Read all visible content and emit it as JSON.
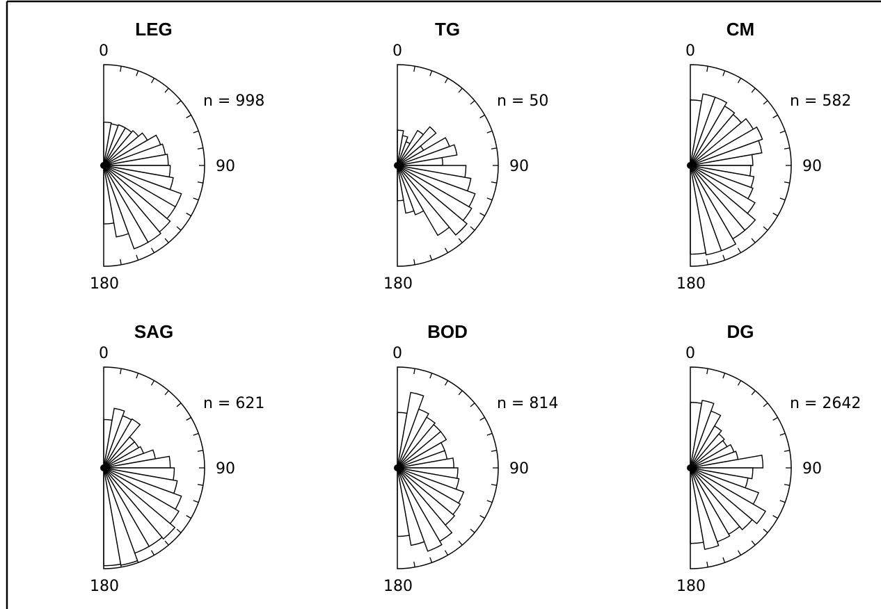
{
  "chart_data": [
    {
      "type": "rose",
      "title": "LEG",
      "count_label": "n = 998",
      "angle_labels": [
        "0",
        "90",
        "180"
      ],
      "angle_range": [
        0,
        180
      ],
      "bin_width_deg": 10,
      "radius_max": 1.0,
      "values": [
        0.43,
        0.42,
        0.43,
        0.43,
        0.45,
        0.5,
        0.6,
        0.62,
        0.64,
        0.66,
        0.7,
        0.82,
        0.82,
        0.86,
        0.88,
        0.88,
        0.72,
        0.58
      ]
    },
    {
      "type": "rose",
      "title": "TG",
      "count_label": "n = 50",
      "angle_labels": [
        "0",
        "90",
        "180"
      ],
      "angle_range": [
        0,
        180
      ],
      "bin_width_deg": 10,
      "radius_max": 1.0,
      "values": [
        0.35,
        0.3,
        0.25,
        0.4,
        0.5,
        0.3,
        0.55,
        0.6,
        0.45,
        0.68,
        0.74,
        0.82,
        0.85,
        0.9,
        0.8,
        0.52,
        0.48,
        0.35
      ]
    },
    {
      "type": "rose",
      "title": "CM",
      "count_label": "n = 582",
      "angle_labels": [
        "0",
        "90",
        "180"
      ],
      "angle_range": [
        0,
        180
      ],
      "bin_width_deg": 10,
      "radius_max": 1.0,
      "values": [
        0.65,
        0.72,
        0.72,
        0.68,
        0.66,
        0.72,
        0.76,
        0.72,
        0.62,
        0.6,
        0.64,
        0.66,
        0.74,
        0.84,
        0.84,
        0.9,
        0.9,
        0.88
      ]
    },
    {
      "type": "rose",
      "title": "SAG",
      "count_label": "n = 621",
      "angle_labels": [
        "0",
        "90",
        "180"
      ],
      "angle_range": [
        0,
        180
      ],
      "bin_width_deg": 10,
      "radius_max": 1.0,
      "values": [
        0.48,
        0.6,
        0.55,
        0.56,
        0.4,
        0.4,
        0.42,
        0.52,
        0.66,
        0.7,
        0.74,
        0.82,
        0.86,
        0.92,
        0.9,
        0.9,
        0.98,
        0.97
      ]
    },
    {
      "type": "rose",
      "title": "BOD",
      "count_label": "n = 814",
      "angle_labels": [
        "0",
        "90",
        "180"
      ],
      "angle_range": [
        0,
        180
      ],
      "bin_width_deg": 10,
      "radius_max": 1.0,
      "values": [
        0.55,
        0.76,
        0.62,
        0.58,
        0.56,
        0.56,
        0.5,
        0.5,
        0.56,
        0.6,
        0.62,
        0.7,
        0.72,
        0.74,
        0.84,
        0.88,
        0.78,
        0.68
      ]
    },
    {
      "type": "rose",
      "title": "DG",
      "count_label": "n = 2642",
      "angle_labels": [
        "0",
        "90",
        "180"
      ],
      "angle_range": [
        0,
        180
      ],
      "bin_width_deg": 10,
      "radius_max": 1.0,
      "values": [
        0.65,
        0.68,
        0.6,
        0.48,
        0.44,
        0.42,
        0.46,
        0.48,
        0.72,
        0.62,
        0.58,
        0.72,
        0.86,
        0.8,
        0.76,
        0.78,
        0.82,
        0.75
      ]
    }
  ]
}
